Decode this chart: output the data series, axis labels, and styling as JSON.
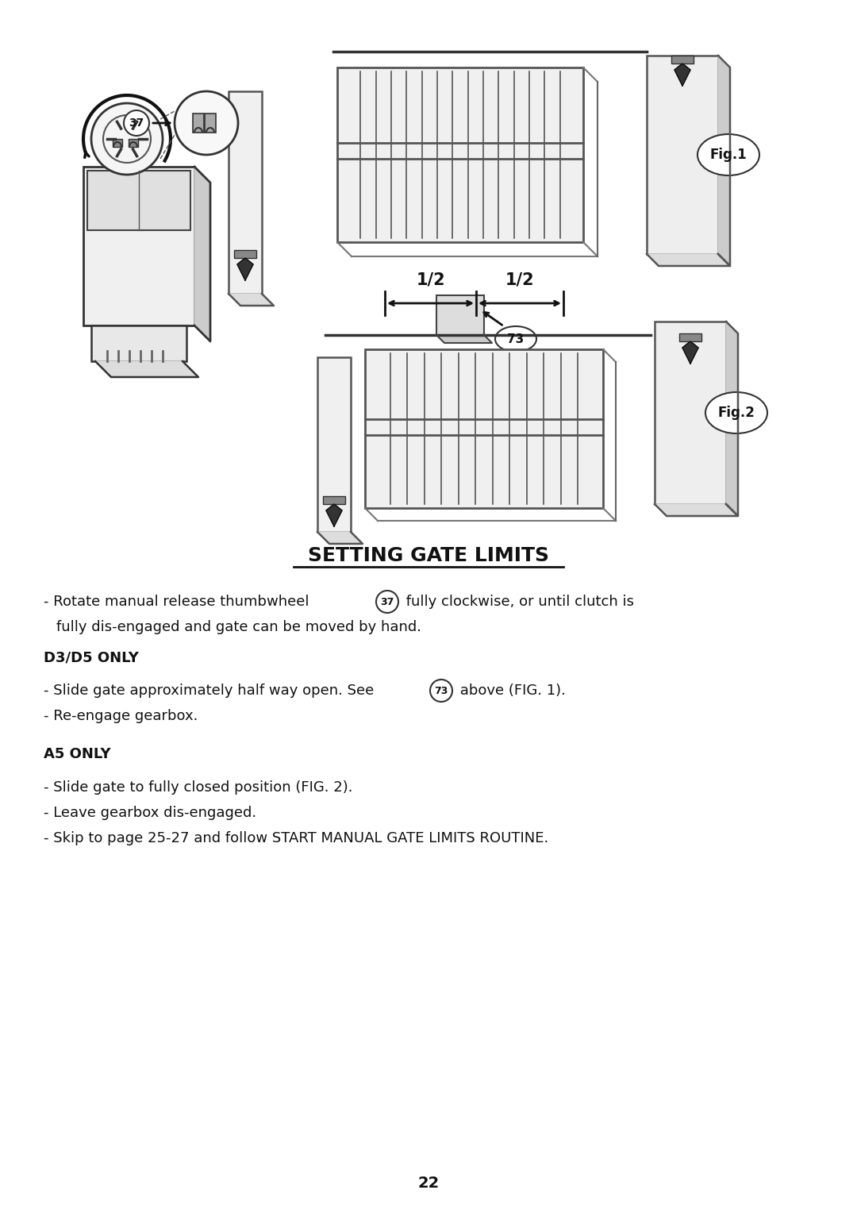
{
  "page_bg": "#ffffff",
  "title": "SETTING GATE LIMITS",
  "title_fontsize": 18,
  "body_fontsize": 13,
  "bold_fontsize": 13,
  "page_number": "22",
  "fig1_label": "Fig.1",
  "fig2_label": "Fig.2",
  "ref_37": "37",
  "ref_73": "73",
  "d3d5_header": "D3/D5 ONLY",
  "a5_header": "A5 ONLY"
}
